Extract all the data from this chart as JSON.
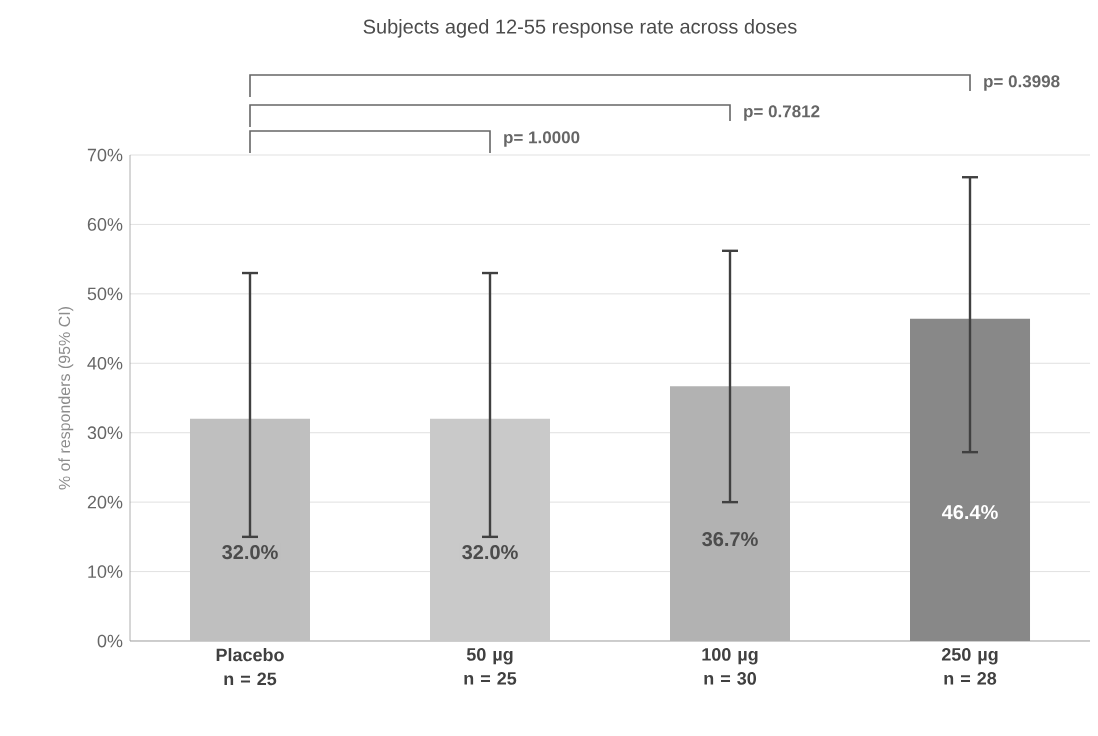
{
  "chart_data": {
    "type": "bar",
    "title": "Subjects aged 12-55 response rate across doses",
    "ylabel": "% of responders (95% CI)",
    "categories": [
      "Placebo n = 25",
      "50 µg n = 25",
      "100 µg n = 30",
      "250 µg n = 28"
    ],
    "values": [
      32.0,
      32.0,
      36.7,
      46.4
    ],
    "colors": [
      "#bfbfbf",
      "#c9c9c9",
      "#b2b2b2",
      "#888888"
    ],
    "errors": [
      [
        15,
        53
      ],
      [
        15,
        53
      ],
      [
        20,
        56.2
      ],
      [
        27.2,
        66.8
      ]
    ],
    "value_labels": [
      "32.0%",
      "32.0%",
      "36.7%",
      "46.4%"
    ],
    "annotations": [
      "p= 1.0000",
      "p= 0.7812",
      "p= 0.3998"
    ],
    "ylim": [
      0,
      70
    ],
    "yticks": [
      {
        "value": 0,
        "label": "0%"
      },
      {
        "value": 10,
        "label": "10%"
      },
      {
        "value": 20,
        "label": "20%"
      },
      {
        "value": 30,
        "label": "30%"
      },
      {
        "value": 40,
        "label": "40%"
      },
      {
        "value": 50,
        "label": "50%"
      },
      {
        "value": 60,
        "label": "60%"
      },
      {
        "value": 70,
        "label": "70%"
      }
    ],
    "grid": "y"
  }
}
